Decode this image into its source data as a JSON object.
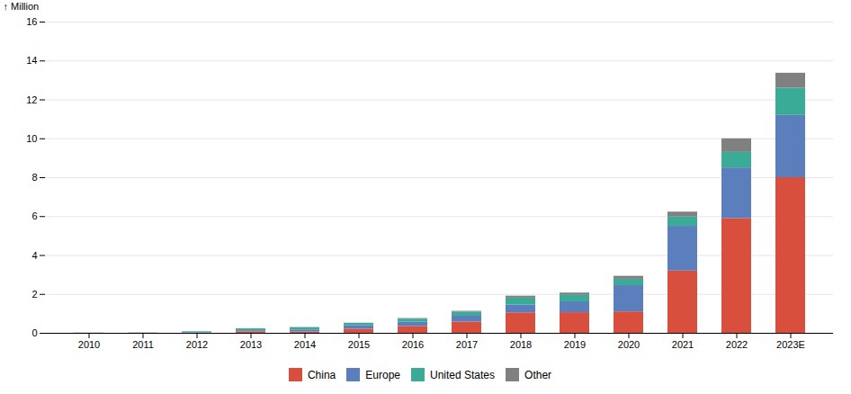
{
  "chart_data": {
    "type": "bar",
    "stacked": true,
    "categories": [
      "2010",
      "2011",
      "2012",
      "2013",
      "2014",
      "2015",
      "2016",
      "2017",
      "2018",
      "2019",
      "2020",
      "2021",
      "2022",
      "2023E"
    ],
    "series": [
      {
        "name": "China",
        "color": "#d94f3d",
        "values": [
          0.005,
          0.008,
          0.01,
          0.08,
          0.07,
          0.21,
          0.35,
          0.58,
          1.05,
          1.06,
          1.1,
          3.2,
          5.9,
          8.0
        ]
      },
      {
        "name": "Europe",
        "color": "#5b7fbd",
        "values": [
          0.005,
          0.005,
          0.02,
          0.05,
          0.1,
          0.19,
          0.22,
          0.3,
          0.4,
          0.56,
          1.35,
          2.3,
          2.6,
          3.2
        ]
      },
      {
        "name": "United States",
        "color": "#3aab96",
        "values": [
          0.005,
          0.005,
          0.05,
          0.1,
          0.12,
          0.11,
          0.16,
          0.2,
          0.36,
          0.33,
          0.33,
          0.48,
          0.8,
          1.4
        ]
      },
      {
        "name": "Other",
        "color": "#808080",
        "values": [
          0.0,
          0.0,
          0.0,
          0.0,
          0.01,
          0.01,
          0.03,
          0.05,
          0.1,
          0.12,
          0.15,
          0.25,
          0.7,
          0.77
        ]
      }
    ],
    "ylabel": "Million",
    "ylim": [
      0,
      16
    ],
    "yticks": [
      0,
      2,
      4,
      6,
      8,
      10,
      12,
      14,
      16
    ],
    "grid": true,
    "legend": "bottom"
  }
}
